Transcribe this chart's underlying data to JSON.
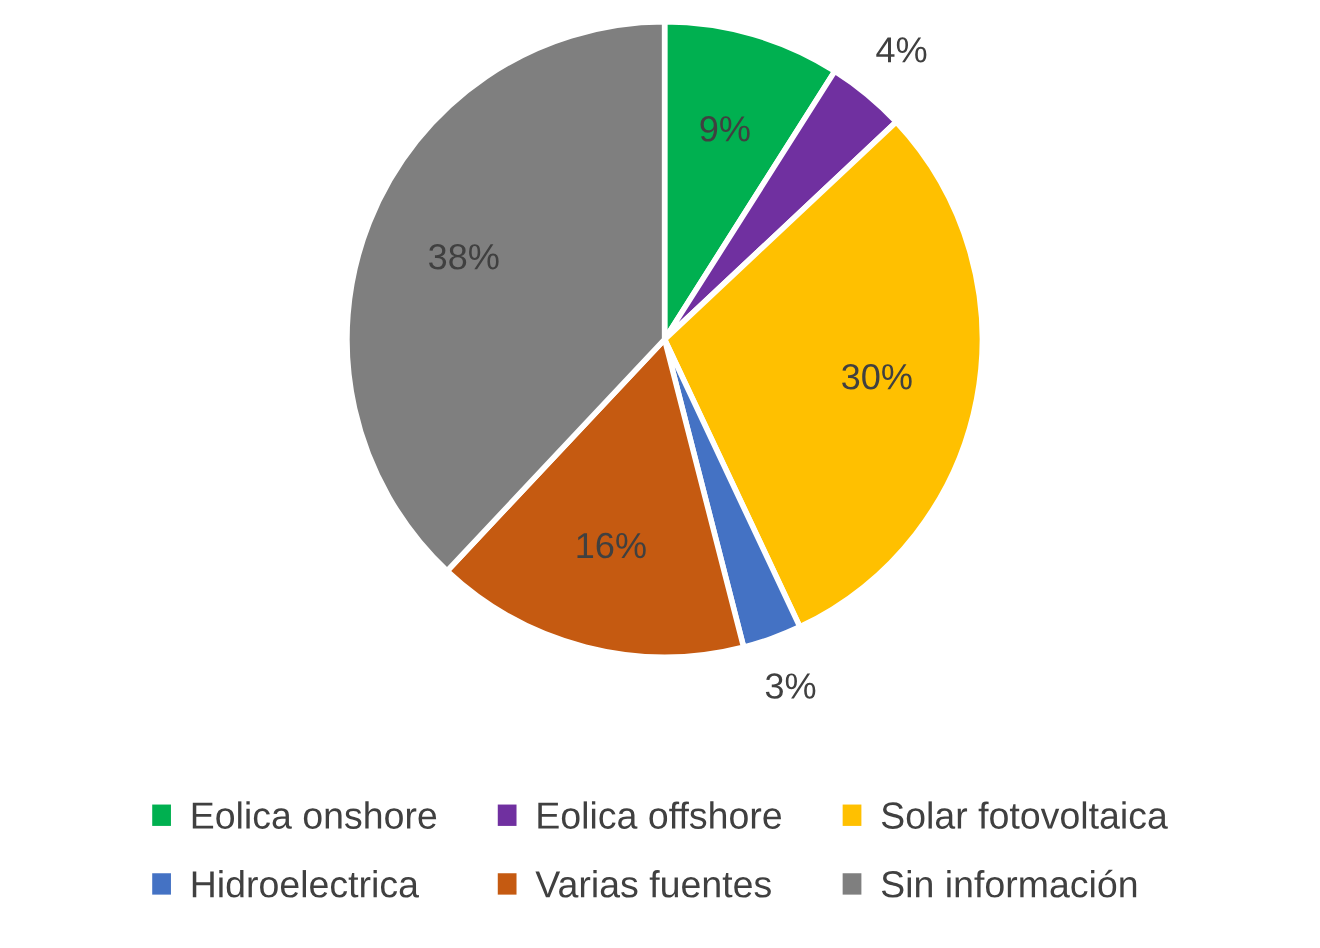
{
  "chart_data": {
    "type": "pie",
    "categories": [
      "Eolica onshore",
      "Eolica offshore",
      "Solar fotovoltaica",
      "Hidroelectrica",
      "Varias fuentes",
      "Sin información"
    ],
    "values": [
      9,
      4,
      30,
      3,
      16,
      38
    ],
    "colors": [
      "#00b050",
      "#7030a0",
      "#ffc000",
      "#4472c4",
      "#c55a11",
      "#7f7f7f"
    ],
    "value_labels": [
      "9%",
      "4%",
      "30%",
      "3%",
      "16%",
      "38%"
    ],
    "legend": "bottom"
  }
}
